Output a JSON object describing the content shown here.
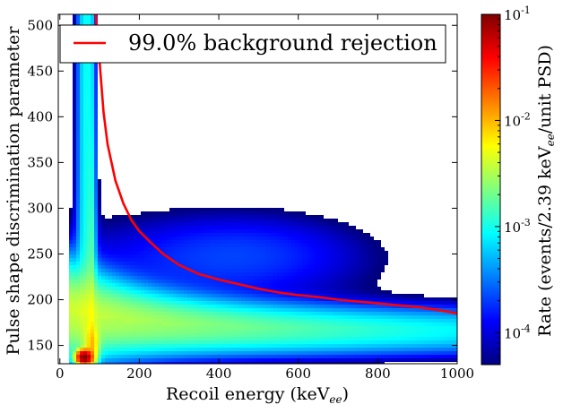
{
  "chart_data": {
    "type": "heatmap",
    "title": "",
    "xlabel": "Recoil energy (keV",
    "xlabel_sub": "ee",
    "xlabel_close": ")",
    "ylabel": "Pulse shape discrimination parameter",
    "xlim": [
      -4,
      1000
    ],
    "ylim": [
      130,
      512
    ],
    "xticks": [
      0,
      200,
      400,
      600,
      800,
      1000
    ],
    "yticks": [
      150,
      200,
      250,
      300,
      350,
      400,
      450,
      500
    ],
    "grid": false,
    "colormap": "jet",
    "colorbar": {
      "scale": "log",
      "range": [
        5e-05,
        0.1
      ],
      "tick_values": [
        0.0001,
        0.001,
        0.01,
        0.1
      ],
      "tick_labels": [
        {
          "base": "10",
          "exp": "-4"
        },
        {
          "base": "10",
          "exp": "-3"
        },
        {
          "base": "10",
          "exp": "-2"
        },
        {
          "base": "10",
          "exp": "-1"
        }
      ],
      "label_prefix": "Rate (events/2.39 keV",
      "label_sub": "ee",
      "label_suffix": "/unit PSD)"
    },
    "legend": {
      "position": "top",
      "entries": [
        {
          "label": "99.0% background rejection",
          "color": "#ff0000"
        }
      ]
    },
    "series": [
      {
        "name": "99.0% background rejection",
        "type": "line",
        "color": "#ff0000",
        "x": [
          90,
          100,
          110,
          120,
          140,
          160,
          180,
          200,
          230,
          260,
          300,
          350,
          400,
          450,
          500,
          550,
          600,
          650,
          700,
          750,
          800,
          850,
          900,
          950,
          1000
        ],
        "y": [
          512,
          460,
          405,
          370,
          330,
          305,
          287,
          275,
          262,
          250,
          238,
          228,
          222,
          217,
          212,
          208,
          205,
          203,
          200,
          198,
          196,
          194,
          192,
          189,
          185
        ]
      }
    ],
    "density_regions": {
      "nuclear_recoil_band": {
        "x_range": [
          40,
          100
        ],
        "y_range": [
          130,
          512
        ]
      },
      "electron_recoil_band": {
        "psd_center_at_1000": 165,
        "psd_center_at_100": 180
      },
      "high_psd_lobe": {
        "x_range": [
          250,
          850
        ],
        "psd_center": 250
      },
      "hotspot": {
        "x_range": [
          45,
          80
        ],
        "y_range": [
          132,
          142
        ],
        "rate": 0.1
      }
    }
  }
}
